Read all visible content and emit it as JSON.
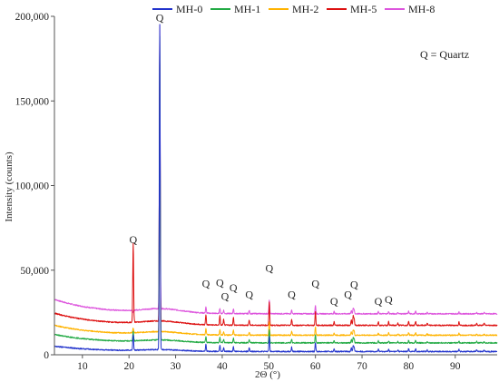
{
  "chart_data": {
    "type": "line",
    "xlabel": "2Θ (°)",
    "ylabel": "Intensity (counts)",
    "xlim": [
      4,
      99
    ],
    "ylim": [
      0,
      200000
    ],
    "xticks": [
      "10",
      "20",
      "30",
      "40",
      "50",
      "60",
      "70",
      "80",
      "90"
    ],
    "yticks": [
      "0",
      "50,000",
      "100,000",
      "150,000",
      "200,000"
    ],
    "legend_position": "top",
    "annotation": "Q = Quartz",
    "peak_marker": "Q",
    "series": [
      {
        "name": "MH-0",
        "color": "#2233cc",
        "baseline": 3500,
        "offset": 0,
        "peaks": [
          [
            20.9,
            12000
          ],
          [
            26.6,
            195000
          ]
        ]
      },
      {
        "name": "MH-1",
        "color": "#22aa44",
        "baseline": 5500,
        "offset": 4000,
        "peaks": [
          [
            20.9,
            14000
          ],
          [
            26.6,
            188000
          ]
        ]
      },
      {
        "name": "MH-2",
        "color": "#ffb300",
        "baseline": 6500,
        "offset": 8000,
        "peaks": [
          [
            20.9,
            16000
          ],
          [
            26.6,
            130000
          ]
        ]
      },
      {
        "name": "MH-5",
        "color": "#dd1111",
        "baseline": 8000,
        "offset": 13000,
        "peaks": [
          [
            20.9,
            66000
          ],
          [
            26.6,
            172000
          ]
        ]
      },
      {
        "name": "MH-8",
        "color": "#dd55dd",
        "baseline": 9500,
        "offset": 19000,
        "peaks": [
          [
            20.9,
            25000
          ],
          [
            26.6,
            195000
          ]
        ]
      }
    ],
    "minor_peaks": [
      {
        "x": 36.5,
        "h": 0.22
      },
      {
        "x": 39.5,
        "h": 0.2
      },
      {
        "x": 40.3,
        "h": 0.12
      },
      {
        "x": 42.4,
        "h": 0.17
      },
      {
        "x": 45.8,
        "h": 0.12
      },
      {
        "x": 50.1,
        "h": 0.5
      },
      {
        "x": 54.9,
        "h": 0.14
      },
      {
        "x": 60.0,
        "h": 0.3
      },
      {
        "x": 64.0,
        "h": 0.08
      },
      {
        "x": 67.7,
        "h": 0.13
      },
      {
        "x": 68.1,
        "h": 0.2
      },
      {
        "x": 68.3,
        "h": 0.14
      },
      {
        "x": 73.5,
        "h": 0.08
      },
      {
        "x": 75.7,
        "h": 0.08
      },
      {
        "x": 77.7,
        "h": 0.05
      },
      {
        "x": 80.0,
        "h": 0.09
      },
      {
        "x": 81.5,
        "h": 0.09
      },
      {
        "x": 84.0,
        "h": 0.05
      },
      {
        "x": 90.8,
        "h": 0.07
      },
      {
        "x": 94.6,
        "h": 0.05
      },
      {
        "x": 96.2,
        "h": 0.05
      }
    ],
    "peak_labels": [
      {
        "x": 20.9,
        "y": 66000
      },
      {
        "x": 26.6,
        "y": 197000
      },
      {
        "x": 36.5,
        "y": 40000
      },
      {
        "x": 39.5,
        "y": 40500
      },
      {
        "x": 40.6,
        "y": 32500
      },
      {
        "x": 42.4,
        "y": 37500
      },
      {
        "x": 45.8,
        "y": 33500
      },
      {
        "x": 50.1,
        "y": 49000
      },
      {
        "x": 54.9,
        "y": 33500
      },
      {
        "x": 60.0,
        "y": 40000
      },
      {
        "x": 64.0,
        "y": 29500
      },
      {
        "x": 67.0,
        "y": 33500
      },
      {
        "x": 68.3,
        "y": 39500
      },
      {
        "x": 73.5,
        "y": 29500
      },
      {
        "x": 75.7,
        "y": 30500
      }
    ]
  }
}
